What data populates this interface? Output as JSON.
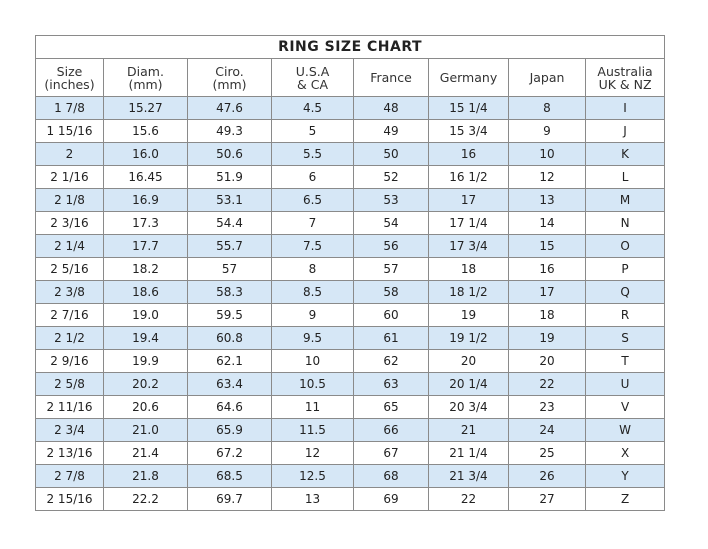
{
  "title": "RING SIZE CHART",
  "headers": [
    [
      "Size",
      "(inches)"
    ],
    [
      "Diam.",
      "(mm)"
    ],
    [
      "Ciro.",
      "(mm)"
    ],
    [
      "U.S.A",
      "& CA"
    ],
    [
      "France",
      ""
    ],
    [
      "Germany",
      ""
    ],
    [
      "Japan",
      ""
    ],
    [
      "Australia",
      "UK & NZ"
    ]
  ],
  "rows": [
    [
      "1 7/8",
      "15.27",
      "47.6",
      "4.5",
      "48",
      "15 1/4",
      "8",
      "I"
    ],
    [
      "1 15/16",
      "15.6",
      "49.3",
      "5",
      "49",
      "15 3/4",
      "9",
      "J"
    ],
    [
      "2",
      "16.0",
      "50.6",
      "5.5",
      "50",
      "16",
      "10",
      "K"
    ],
    [
      "2 1/16",
      "16.45",
      "51.9",
      "6",
      "52",
      "16 1/2",
      "12",
      "L"
    ],
    [
      "2 1/8",
      "16.9",
      "53.1",
      "6.5",
      "53",
      "17",
      "13",
      "M"
    ],
    [
      "2 3/16",
      "17.3",
      "54.4",
      "7",
      "54",
      "17 1/4",
      "14",
      "N"
    ],
    [
      "2 1/4",
      "17.7",
      "55.7",
      "7.5",
      "56",
      "17 3/4",
      "15",
      "O"
    ],
    [
      "2 5/16",
      "18.2",
      "57",
      "8",
      "57",
      "18",
      "16",
      "P"
    ],
    [
      "2 3/8",
      "18.6",
      "58.3",
      "8.5",
      "58",
      "18 1/2",
      "17",
      "Q"
    ],
    [
      "2 7/16",
      "19.0",
      "59.5",
      "9",
      "60",
      "19",
      "18",
      "R"
    ],
    [
      "2 1/2",
      "19.4",
      "60.8",
      "9.5",
      "61",
      "19 1/2",
      "19",
      "S"
    ],
    [
      "2 9/16",
      "19.9",
      "62.1",
      "10",
      "62",
      "20",
      "20",
      "T"
    ],
    [
      "2 5/8",
      "20.2",
      "63.4",
      "10.5",
      "63",
      "20 1/4",
      "22",
      "U"
    ],
    [
      "2 11/16",
      "20.6",
      "64.6",
      "11",
      "65",
      "20 3/4",
      "23",
      "V"
    ],
    [
      "2 3/4",
      "21.0",
      "65.9",
      "11.5",
      "66",
      "21",
      "24",
      "W"
    ],
    [
      "2 13/16",
      "21.4",
      "67.2",
      "12",
      "67",
      "21 1/4",
      "25",
      "X"
    ],
    [
      "2 7/8",
      "21.8",
      "68.5",
      "12.5",
      "68",
      "21 3/4",
      "26",
      "Y"
    ],
    [
      "2 15/16",
      "22.2",
      "69.7",
      "13",
      "69",
      "22",
      "27",
      "Z"
    ]
  ],
  "colors": {
    "stripe": "#d6e7f6",
    "border": "#8a8a8a"
  }
}
